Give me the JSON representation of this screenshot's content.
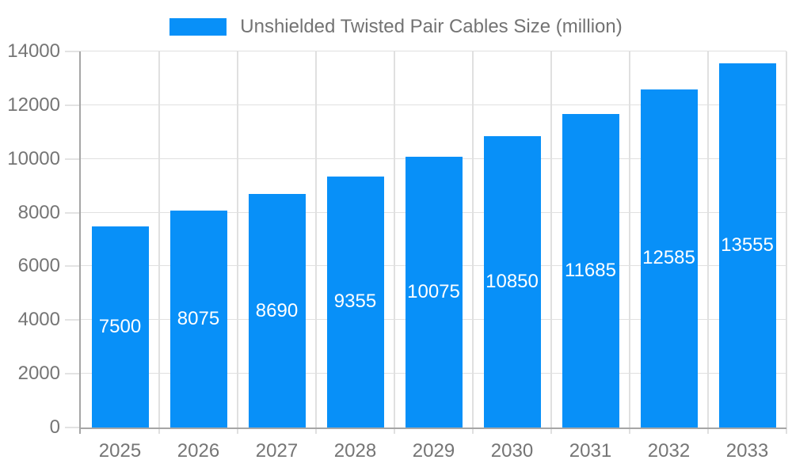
{
  "chart_data": {
    "type": "bar",
    "title": "",
    "series_name": "Unshielded Twisted Pair Cables Size (million)",
    "categories": [
      "2025",
      "2026",
      "2027",
      "2028",
      "2029",
      "2030",
      "2031",
      "2032",
      "2033"
    ],
    "values": [
      7500,
      8075,
      8690,
      9355,
      10075,
      10850,
      11685,
      12585,
      13555
    ],
    "xlabel": "",
    "ylabel": "",
    "ylim": [
      0,
      14000
    ],
    "yticks": [
      0,
      2000,
      4000,
      6000,
      8000,
      10000,
      12000,
      14000
    ],
    "grid": true,
    "legend_position": "top-center",
    "colors": {
      "bar": "#0890f8",
      "value_label": "#ffffff",
      "axis_text": "#757575",
      "legend_text": "#737373",
      "gridline": "#e0e0e0",
      "tick_mark": "#e3e3e3",
      "axis_line": "#a6a6a6",
      "background": "#ffffff"
    }
  }
}
